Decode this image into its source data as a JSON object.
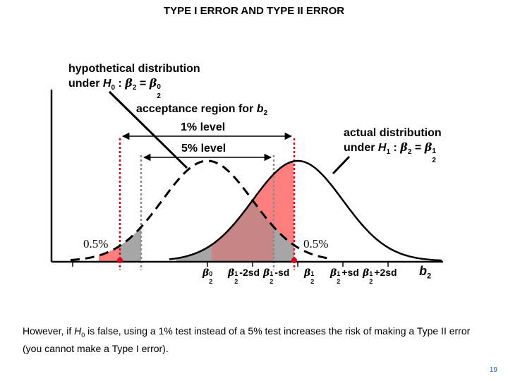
{
  "title": "TYPE I ERROR AND TYPE II ERROR",
  "h0_label": {
    "line1": "hypothetical distribution",
    "under": "under",
    "H": "H",
    "sub0": "0",
    "colon": ":",
    "beta": "β",
    "sub2": "2",
    "eq": "=",
    "sup0": "0"
  },
  "acceptance": {
    "line1": "acceptance region for",
    "b": "b",
    "sub2": "2",
    "one_pct": "1% level",
    "five_pct": "5% level"
  },
  "h1_label": {
    "line1": "actual distribution",
    "under": "under",
    "H": "H",
    "sub1": "1",
    "colon": ":",
    "beta": "β",
    "sub2": "2",
    "eq": "=",
    "sup1": "1"
  },
  "tails": {
    "left": "0.5%",
    "right": "0.5%"
  },
  "axis_ticks": {
    "beta_sym": "β",
    "sub2": "2",
    "sup0": "0",
    "sup1": "1",
    "minus_2sd": "-2sd",
    "minus_sd": "-sd",
    "plus_sd": "+sd",
    "plus_2sd": "+2sd",
    "b": "b",
    "b_sub": "2"
  },
  "note": {
    "p1": "However, if",
    "H": "H",
    "sub0": "0",
    "p2": "is false, using a 1% test instead of a 5% test increases the risk of making a Type II error (you cannot make a Type I error)."
  },
  "page_number": "19",
  "colors": {
    "red_region": "#ff7f7f",
    "gray_region": "#a6a6a6",
    "overlap_region": "#c88585",
    "critical_line_1pct": "#e0001a",
    "critical_line_5pct": "#8a8a8a",
    "accent_dot": "#e0001a",
    "page_number": "#1a5fd0"
  }
}
